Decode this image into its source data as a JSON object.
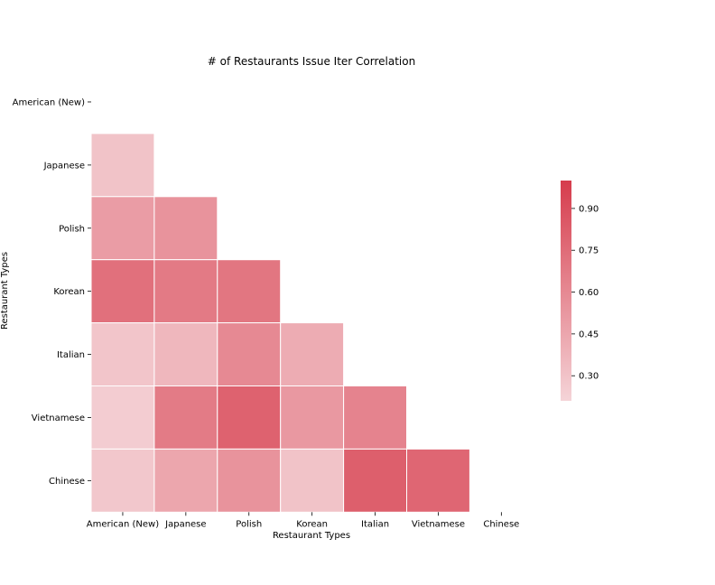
{
  "chart_data": {
    "type": "heatmap",
    "title": "# of Restaurants Issue Iter Correlation",
    "xlabel": "Restaurant Types",
    "ylabel": "Restaurant Types",
    "categories": [
      "American (New)",
      "Japanese",
      "Polish",
      "Korean",
      "Italian",
      "Vietnamese",
      "Chinese"
    ],
    "mask": "upper-triangle-including-diagonal",
    "values": [
      [
        null,
        null,
        null,
        null,
        null,
        null,
        null
      ],
      [
        0.3,
        null,
        null,
        null,
        null,
        null,
        null
      ],
      [
        0.5,
        0.55,
        null,
        null,
        null,
        null,
        null
      ],
      [
        0.73,
        0.68,
        0.7,
        null,
        null,
        null,
        null
      ],
      [
        0.29,
        0.36,
        0.6,
        0.42,
        null,
        null,
        null
      ],
      [
        0.25,
        0.67,
        0.8,
        0.52,
        0.63,
        null,
        null
      ],
      [
        0.28,
        0.45,
        0.55,
        0.3,
        0.82,
        0.78,
        null
      ]
    ],
    "colorbar": {
      "vmin": 0.21,
      "vmax": 1.0,
      "ticks": [
        0.3,
        0.45,
        0.6,
        0.75,
        0.9
      ],
      "tick_labels": [
        "0.30",
        "0.45",
        "0.60",
        "0.75",
        "0.90"
      ],
      "color_low": "#f5d4d8",
      "color_high": "#d63c4c"
    },
    "grid": false,
    "legend": "right"
  }
}
